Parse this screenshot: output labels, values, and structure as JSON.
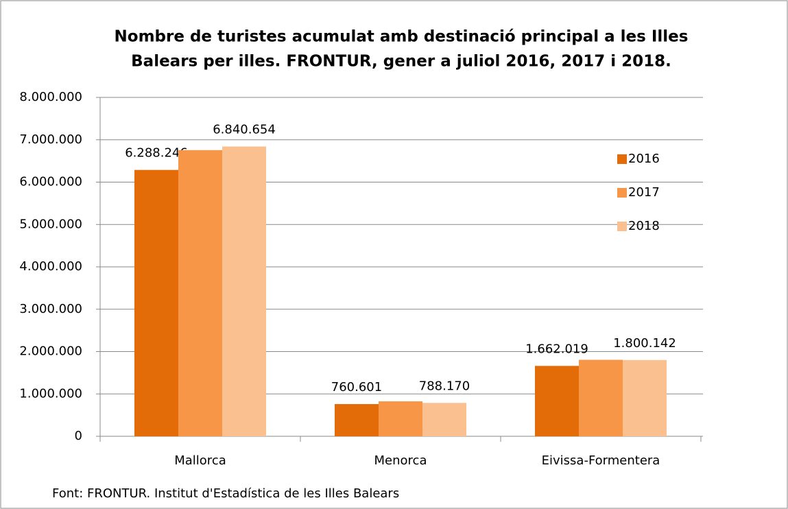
{
  "chart_data": {
    "type": "bar",
    "title": [
      "Nombre de turistes acumulat amb destinació principal a les Illes",
      "Balears per illes. FRONTUR,  gener a juliol 2016, 2017 i 2018."
    ],
    "categories": [
      "Mallorca",
      "Menorca",
      "Eivissa-Formentera"
    ],
    "series": [
      {
        "name": "2016",
        "color": "#e36c09",
        "values": [
          6288246,
          760601,
          1662019
        ],
        "value_labels": [
          "6.288.246",
          "760.601",
          "1.662.019"
        ]
      },
      {
        "name": "2017",
        "color": "#f79646",
        "values": [
          6755000,
          825000,
          1805000
        ]
      },
      {
        "name": "2018",
        "color": "#fac090",
        "values": [
          6840654,
          788170,
          1800142
        ],
        "value_labels": [
          "6.840.654",
          "788.170",
          "1.800.142"
        ]
      }
    ],
    "ylim": [
      0,
      8000000
    ],
    "yticks": [
      0,
      {
        "value": 1000000,
        "label": "1.000.000"
      },
      {
        "value": 2000000,
        "label": "2.000.000"
      },
      {
        "value": 3000000,
        "label": "3.000.000"
      },
      {
        "value": 4000000,
        "label": "4.000.000"
      },
      {
        "value": 5000000,
        "label": "5.000.000"
      },
      {
        "value": 6000000,
        "label": "6.000.000"
      },
      {
        "value": 7000000,
        "label": "7.000.000"
      },
      {
        "value": 8000000,
        "label": "8.000.000"
      }
    ],
    "grid": true,
    "legend": "right",
    "source": "Font: FRONTUR. Institut d'Estadística  de les Illes Balears"
  }
}
